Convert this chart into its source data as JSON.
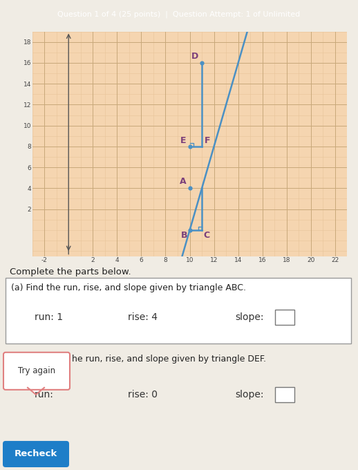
{
  "title_bar": "Question 1 of 4 (25 points)  |  Question Attempt: 1 of Unlimited",
  "title_bar_bg": "#2d6b8a",
  "title_bar_fg": "#ffffff",
  "graph_bg": "#f5d5b0",
  "graph_grid_minor_color": "#e8c49a",
  "graph_grid_major_color": "#c8a87a",
  "xlim": [
    -3,
    23
  ],
  "ylim": [
    -2.5,
    19
  ],
  "xtick_major": [
    -2,
    2,
    4,
    6,
    8,
    10,
    12,
    14,
    16,
    18,
    20,
    22
  ],
  "ytick_major": [
    2,
    4,
    6,
    8,
    10,
    12,
    14,
    16,
    18
  ],
  "line_color": "#4a90c4",
  "line_width": 1.8,
  "label_color": "#7b3f7a",
  "label_fontsize": 9,
  "outer_bg": "#f0ece4",
  "text_bg": "#f8f6f2",
  "box_border": "#aaaaaa",
  "B": [
    10,
    0
  ],
  "C": [
    11,
    0
  ],
  "A": [
    10,
    4
  ],
  "E": [
    10,
    8
  ],
  "F": [
    11,
    8
  ],
  "D": [
    11,
    16
  ],
  "slope": 4,
  "slope_x0": 10,
  "slope_y0": 0,
  "complete_text": "Complete the parts below.",
  "part_a_text": "(a) Find the run, rise, and slope given by triangle ABC.",
  "run_a": "run: 1",
  "rise_a": "rise: 4",
  "slope_a": "slope:",
  "part_b_text": "he run, rise, and slope given by triangle DEF.",
  "try_again_text": "Try again",
  "run_b": "run:",
  "rise_b": "rise: 0",
  "slope_b": "slope:",
  "recheck_text": "Recheck",
  "recheck_bg": "#1e7ec8",
  "recheck_fg": "#ffffff",
  "try_again_border": "#e08080"
}
